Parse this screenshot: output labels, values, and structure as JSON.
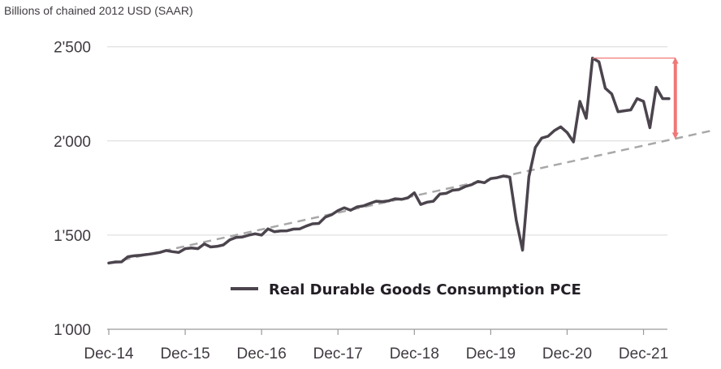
{
  "chart_data": {
    "type": "line",
    "title": "",
    "ylabel": "Billions of chained 2012 USD (SAAR)",
    "xlabel": "",
    "ylim": [
      1000,
      2500
    ],
    "yticks": [
      1000,
      1500,
      2000,
      2500
    ],
    "ytick_labels": [
      "1'000",
      "1'500",
      "2'000",
      "2'500"
    ],
    "xticks": [
      0,
      12,
      24,
      36,
      48,
      60,
      72,
      84
    ],
    "xtick_labels": [
      "Dec-14",
      "Dec-15",
      "Dec-16",
      "Dec-17",
      "Dec-18",
      "Dec-19",
      "Dec-20",
      "Dec-21"
    ],
    "x_unit": "months since Dec-14",
    "grid": "horizontal",
    "legend_position": "center-bottom",
    "colors": {
      "series": "#4b444d",
      "trend": "#a8a8a8",
      "annotation": "#f07878",
      "grid": "#d9d9d9",
      "axis": "#9a9a9a",
      "text": "#3f3a40"
    },
    "series": [
      {
        "name": "Real Durable Goods Consumption PCE",
        "x": [
          0,
          1,
          2,
          3,
          4,
          5,
          6,
          7,
          8,
          9,
          10,
          11,
          12,
          13,
          14,
          15,
          16,
          17,
          18,
          19,
          20,
          21,
          22,
          23,
          24,
          25,
          26,
          27,
          28,
          29,
          30,
          31,
          32,
          33,
          34,
          35,
          36,
          37,
          38,
          39,
          40,
          41,
          42,
          43,
          44,
          45,
          46,
          47,
          48,
          49,
          50,
          51,
          52,
          53,
          54,
          55,
          56,
          57,
          58,
          59,
          60,
          61,
          62,
          63,
          64,
          65,
          66,
          67,
          68,
          69,
          70,
          71,
          72,
          73,
          74,
          75,
          76,
          77,
          78,
          79,
          80,
          81,
          82,
          83,
          84,
          85,
          86,
          87,
          88
        ],
        "values": [
          1352,
          1357,
          1358,
          1385,
          1390,
          1393,
          1397,
          1402,
          1408,
          1418,
          1412,
          1408,
          1428,
          1432,
          1428,
          1453,
          1437,
          1440,
          1448,
          1475,
          1488,
          1490,
          1500,
          1507,
          1500,
          1533,
          1518,
          1522,
          1523,
          1532,
          1533,
          1548,
          1560,
          1562,
          1595,
          1608,
          1630,
          1645,
          1632,
          1650,
          1655,
          1668,
          1680,
          1678,
          1682,
          1693,
          1690,
          1698,
          1725,
          1663,
          1675,
          1680,
          1718,
          1722,
          1738,
          1742,
          1758,
          1768,
          1785,
          1778,
          1800,
          1805,
          1814,
          1808,
          1580,
          1420,
          1810,
          1965,
          2015,
          2025,
          2055,
          2075,
          2045,
          1995,
          2210,
          2120,
          2440,
          2420,
          2280,
          2250,
          2155,
          2160,
          2165,
          2225,
          2210,
          2070,
          2285,
          2225,
          2225
        ]
      }
    ],
    "trend_line": {
      "x": [
        0,
        95
      ],
      "values": [
        1352,
        2057
      ]
    },
    "annotation": {
      "type": "gap-arrow",
      "x_start": 76,
      "x_arrow": 89,
      "peak_value": 2440,
      "trend_value": 2014
    }
  }
}
